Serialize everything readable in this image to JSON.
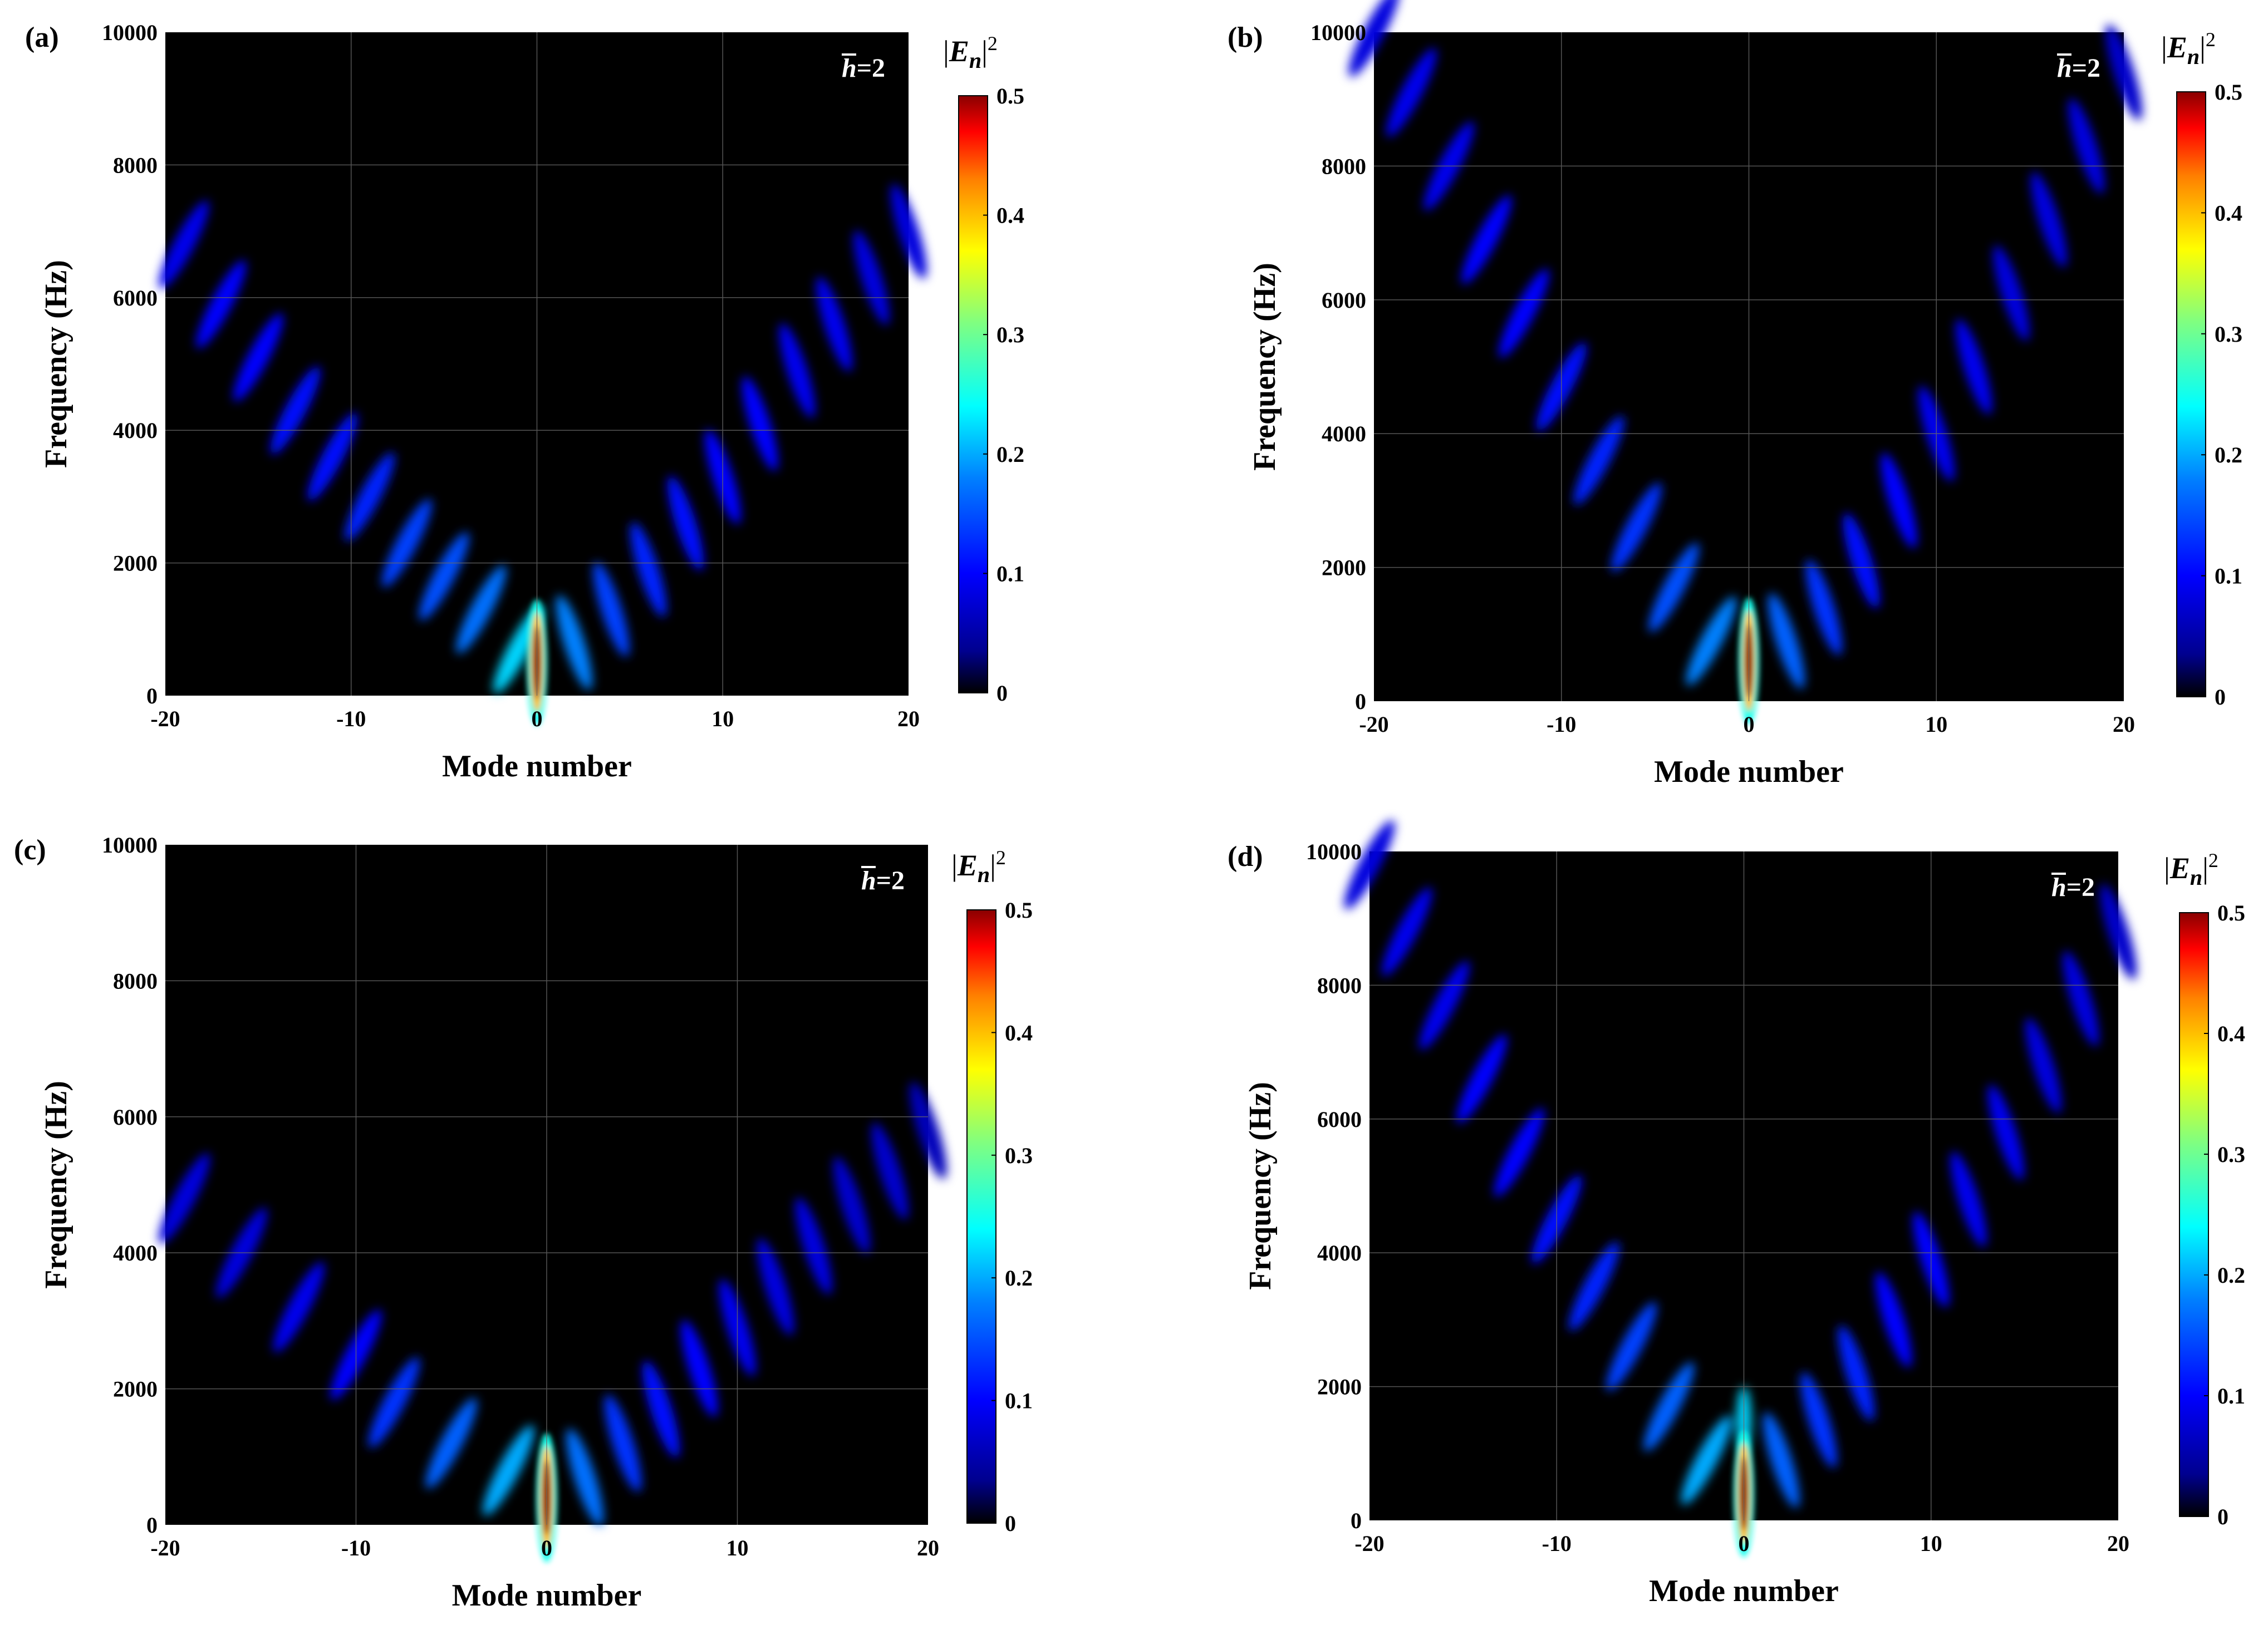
{
  "chart_data": [
    {
      "type": "heatmap",
      "panel_label": "(a)",
      "xlabel": "Mode number",
      "ylabel": "Frequency (Hz)",
      "xlim": [
        -20,
        20
      ],
      "ylim": [
        0,
        10000
      ],
      "xticks": [
        "-20",
        "-10",
        "0",
        "10",
        "20"
      ],
      "yticks": [
        "0",
        "2000",
        "4000",
        "6000",
        "8000",
        "10000"
      ],
      "annotation": "h=2",
      "annotation_var": "h",
      "annotation_value": "=2",
      "colorbar": {
        "title_var": "E",
        "title_sub": "n",
        "title_sup": "2",
        "range": [
          0,
          0.5
        ],
        "ticks": [
          "0",
          "0.1",
          "0.2",
          "0.3",
          "0.4",
          "0.5"
        ]
      },
      "grid": true,
      "peak": {
        "mode": 0,
        "frequency": 500,
        "value": 0.5
      },
      "branches": [
        {
          "side": "left",
          "modes": [
            -1,
            -3,
            -5,
            -7,
            -9,
            -11,
            -13,
            -15,
            -17,
            -19
          ],
          "frequencies": [
            700,
            1300,
            1800,
            2300,
            3000,
            3600,
            4300,
            5100,
            5900,
            6800
          ],
          "values": [
            0.22,
            0.17,
            0.15,
            0.14,
            0.12,
            0.11,
            0.11,
            0.1,
            0.1,
            0.09
          ]
        },
        {
          "side": "right",
          "modes": [
            2,
            4,
            6,
            8,
            10,
            12,
            14,
            16,
            18,
            20
          ],
          "frequencies": [
            800,
            1300,
            1900,
            2600,
            3300,
            4100,
            4900,
            5600,
            6300,
            7000
          ],
          "values": [
            0.18,
            0.14,
            0.12,
            0.11,
            0.1,
            0.1,
            0.09,
            0.09,
            0.08,
            0.08
          ]
        }
      ]
    },
    {
      "type": "heatmap",
      "panel_label": "(b)",
      "xlabel": "Mode number",
      "ylabel": "Frequency (Hz)",
      "xlim": [
        -20,
        20
      ],
      "ylim": [
        0,
        10000
      ],
      "xticks": [
        "-20",
        "-10",
        "0",
        "10",
        "20"
      ],
      "yticks": [
        "0",
        "2000",
        "4000",
        "6000",
        "8000",
        "10000"
      ],
      "annotation": "h=2",
      "annotation_var": "h",
      "annotation_value": "=2",
      "colorbar": {
        "title_var": "E",
        "title_sub": "n",
        "title_sup": "2",
        "range": [
          0,
          0.5
        ],
        "ticks": [
          "0",
          "0.1",
          "0.2",
          "0.3",
          "0.4",
          "0.5"
        ]
      },
      "grid": true,
      "peak": {
        "mode": 0,
        "frequency": 600,
        "value": 0.5
      },
      "branches": [
        {
          "side": "left",
          "modes": [
            -2,
            -4,
            -6,
            -8,
            -10,
            -12,
            -14,
            -16,
            -18,
            -20
          ],
          "frequencies": [
            900,
            1700,
            2600,
            3600,
            4700,
            5800,
            6900,
            8000,
            9100,
            10000
          ],
          "values": [
            0.18,
            0.15,
            0.13,
            0.12,
            0.11,
            0.1,
            0.1,
            0.09,
            0.09,
            0.08
          ]
        },
        {
          "side": "right",
          "modes": [
            2,
            4,
            6,
            8,
            10,
            12,
            14,
            16,
            18,
            20
          ],
          "frequencies": [
            900,
            1400,
            2100,
            3000,
            4000,
            5000,
            6100,
            7200,
            8300,
            9400
          ],
          "values": [
            0.16,
            0.13,
            0.11,
            0.1,
            0.09,
            0.09,
            0.08,
            0.08,
            0.08,
            0.07
          ]
        }
      ]
    },
    {
      "type": "heatmap",
      "panel_label": "(c)",
      "xlabel": "Mode number",
      "ylabel": "Frequency (Hz)",
      "xlim": [
        -20,
        20
      ],
      "ylim": [
        0,
        10000
      ],
      "xticks": [
        "-20",
        "-10",
        "0",
        "10",
        "20"
      ],
      "yticks": [
        "0",
        "2000",
        "4000",
        "6000",
        "8000",
        "10000"
      ],
      "annotation": "h=2",
      "annotation_var": "h",
      "annotation_value": "=2",
      "colorbar": {
        "title_var": "E",
        "title_sub": "n",
        "title_sup": "2",
        "range": [
          0,
          0.5
        ],
        "ticks": [
          "0",
          "0.1",
          "0.2",
          "0.3",
          "0.4",
          "0.5"
        ]
      },
      "grid": true,
      "peak": {
        "mode": 0,
        "frequency": 400,
        "value": 0.5
      },
      "branches": [
        {
          "side": "left",
          "modes": [
            -2,
            -5,
            -8,
            -10,
            -13,
            -16,
            -19
          ],
          "frequencies": [
            800,
            1200,
            1800,
            2500,
            3200,
            4000,
            4800
          ],
          "values": [
            0.2,
            0.16,
            0.13,
            0.1,
            0.09,
            0.08,
            0.08
          ]
        },
        {
          "side": "right",
          "modes": [
            2,
            4,
            6,
            8,
            10,
            12,
            14,
            16,
            18,
            20
          ],
          "frequencies": [
            700,
            1200,
            1700,
            2300,
            2900,
            3500,
            4100,
            4700,
            5200,
            5800
          ],
          "values": [
            0.17,
            0.13,
            0.11,
            0.1,
            0.09,
            0.08,
            0.08,
            0.07,
            0.07,
            0.06
          ]
        }
      ]
    },
    {
      "type": "heatmap",
      "panel_label": "(d)",
      "xlabel": "Mode number",
      "ylabel": "Frequency (Hz)",
      "xlim": [
        -20,
        20
      ],
      "ylim": [
        0,
        10000
      ],
      "xticks": [
        "-20",
        "-10",
        "0",
        "10",
        "20"
      ],
      "yticks": [
        "0",
        "2000",
        "4000",
        "6000",
        "8000",
        "10000"
      ],
      "annotation": "h=2",
      "annotation_var": "h",
      "annotation_value": "=2",
      "colorbar": {
        "title_var": "E",
        "title_sub": "n",
        "title_sup": "2",
        "range": [
          0,
          0.5
        ],
        "ticks": [
          "0",
          "0.1",
          "0.2",
          "0.3",
          "0.4",
          "0.5"
        ]
      },
      "grid": true,
      "peak": {
        "mode": 0,
        "frequency": 400,
        "value": 0.5
      },
      "secondary_peak": {
        "mode": 0,
        "frequency": 1500,
        "value": 0.22
      },
      "branches": [
        {
          "side": "left",
          "modes": [
            -2,
            -4,
            -6,
            -8,
            -10,
            -12,
            -14,
            -16,
            -18,
            -20
          ],
          "frequencies": [
            900,
            1700,
            2600,
            3500,
            4500,
            5500,
            6600,
            7700,
            8800,
            9800
          ],
          "values": [
            0.2,
            0.16,
            0.14,
            0.12,
            0.11,
            0.1,
            0.1,
            0.09,
            0.09,
            0.08
          ]
        },
        {
          "side": "right",
          "modes": [
            2,
            4,
            6,
            8,
            10,
            12,
            14,
            16,
            18,
            20
          ],
          "frequencies": [
            900,
            1500,
            2200,
            3000,
            3900,
            4800,
            5800,
            6800,
            7800,
            8800
          ],
          "values": [
            0.16,
            0.13,
            0.12,
            0.1,
            0.1,
            0.09,
            0.09,
            0.08,
            0.08,
            0.07
          ]
        }
      ]
    }
  ]
}
